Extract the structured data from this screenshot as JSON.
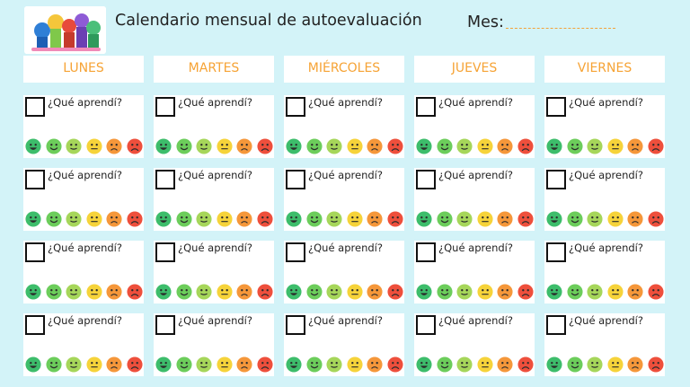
{
  "header": {
    "title": "Calendario mensual de autoevaluación",
    "month_label": "Mes:",
    "month_value": ""
  },
  "days": [
    "LUNES",
    "MARTES",
    "MIÉRCOLES",
    "JUEVES",
    "VIERNES"
  ],
  "cell_question": "¿Qué aprendí?",
  "weeks": 4,
  "faces": [
    {
      "name": "very-happy-face-icon",
      "color": "#3dbd6b"
    },
    {
      "name": "happy-face-icon",
      "color": "#6ccd5b"
    },
    {
      "name": "content-face-icon",
      "color": "#a6d65a"
    },
    {
      "name": "neutral-face-icon",
      "color": "#f6d33a"
    },
    {
      "name": "sad-face-icon",
      "color": "#f5973a"
    },
    {
      "name": "very-sad-face-icon",
      "color": "#ee4f3c"
    }
  ],
  "colors": {
    "background": "#d3f3f8",
    "day_header_text": "#f6a335",
    "month_underline": "#f2a23a"
  }
}
